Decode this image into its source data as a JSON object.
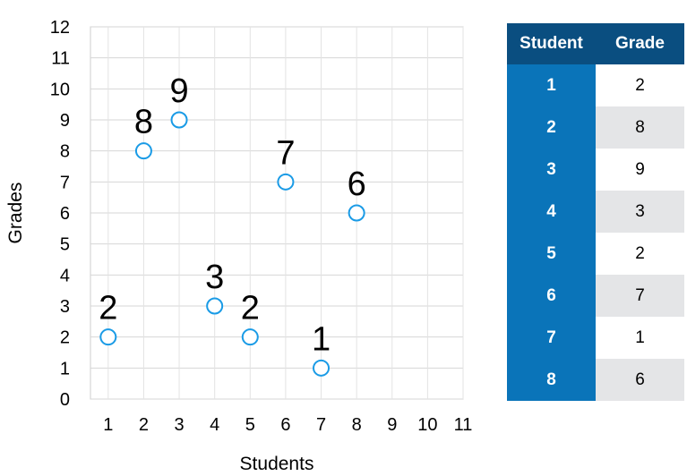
{
  "chart_data": {
    "type": "scatter",
    "title": "",
    "xlabel": "Students",
    "ylabel": "Grades",
    "xlim": [
      0.5,
      11
    ],
    "ylim": [
      0,
      12
    ],
    "xticks": [
      "1",
      "2",
      "3",
      "4",
      "5",
      "6",
      "7",
      "8",
      "9",
      "10",
      "11"
    ],
    "yticks": [
      "0",
      "1",
      "2",
      "3",
      "4",
      "5",
      "6",
      "7",
      "8",
      "9",
      "10",
      "11",
      "12"
    ],
    "grid": true,
    "marker_color": "#1a9be6",
    "points": [
      {
        "x": 1,
        "y": 2,
        "label": "2"
      },
      {
        "x": 2,
        "y": 8,
        "label": "8"
      },
      {
        "x": 3,
        "y": 9,
        "label": "9"
      },
      {
        "x": 4,
        "y": 3,
        "label": "3"
      },
      {
        "x": 5,
        "y": 2,
        "label": "2"
      },
      {
        "x": 6,
        "y": 7,
        "label": "7"
      },
      {
        "x": 7,
        "y": 1,
        "label": "1"
      },
      {
        "x": 8,
        "y": 6,
        "label": "6"
      }
    ]
  },
  "table": {
    "headers": [
      "Student",
      "Grade"
    ],
    "rows": [
      [
        "1",
        "2"
      ],
      [
        "2",
        "8"
      ],
      [
        "3",
        "9"
      ],
      [
        "4",
        "3"
      ],
      [
        "5",
        "2"
      ],
      [
        "6",
        "7"
      ],
      [
        "7",
        "1"
      ],
      [
        "8",
        "6"
      ]
    ]
  }
}
